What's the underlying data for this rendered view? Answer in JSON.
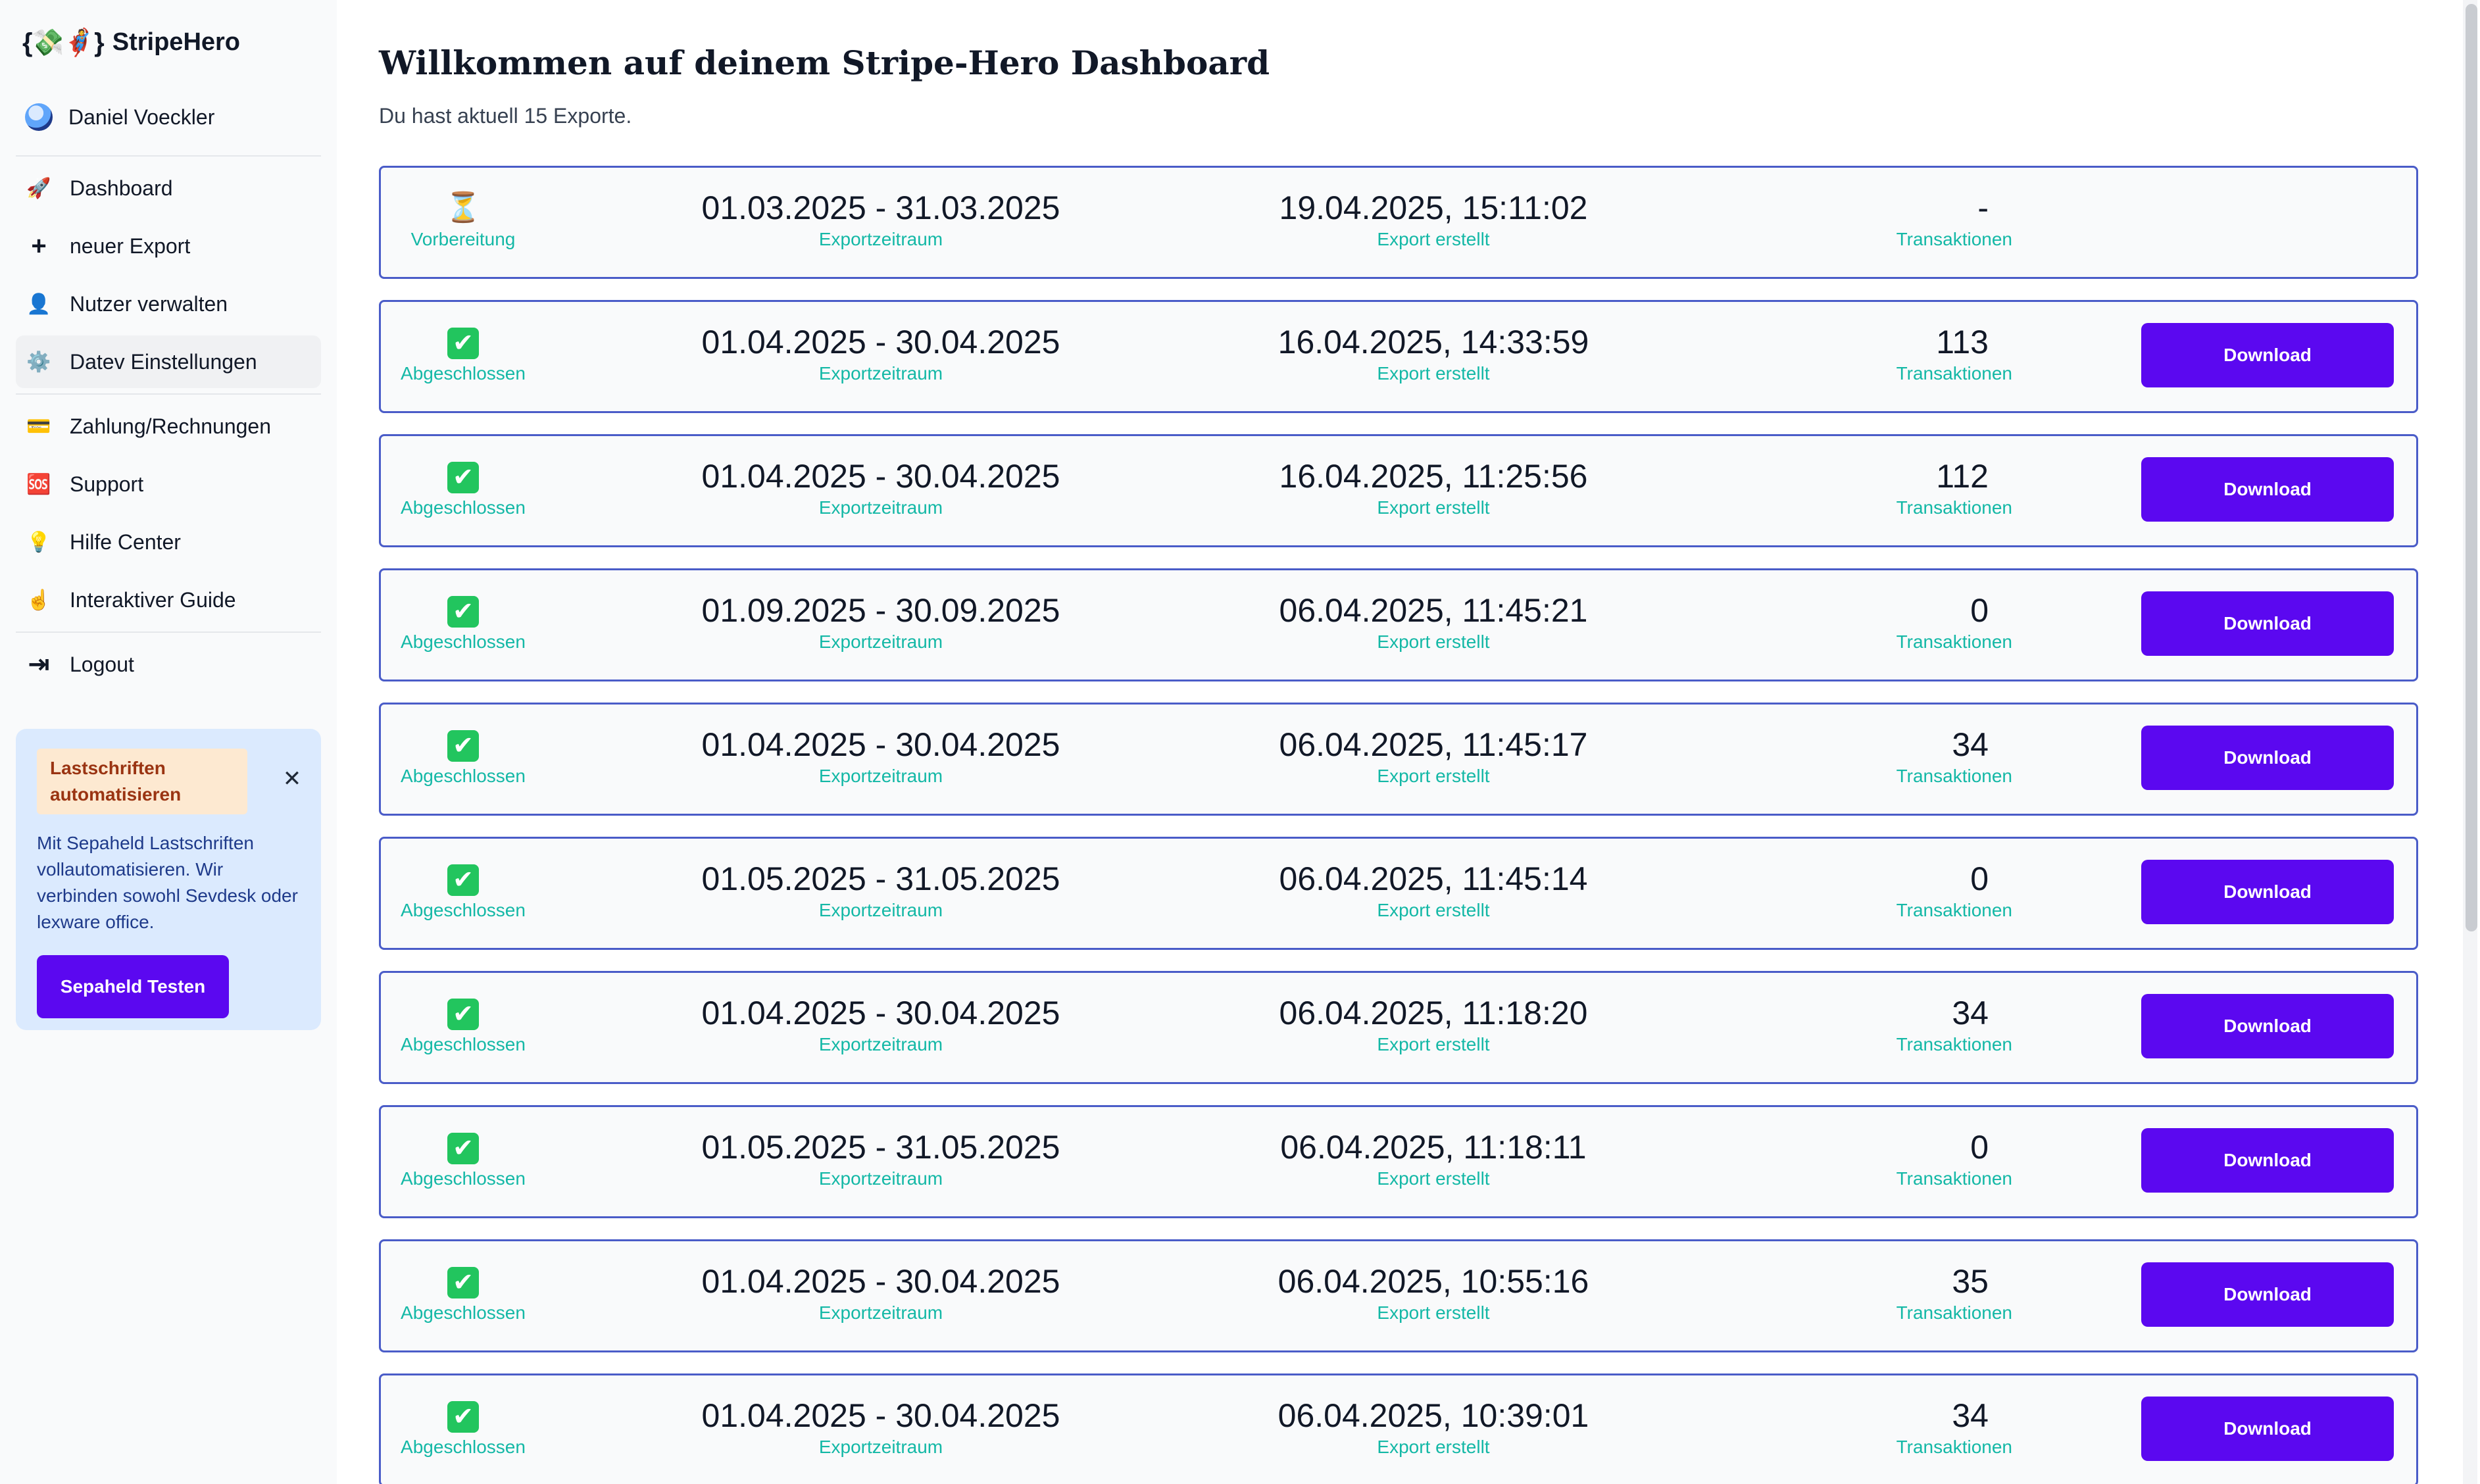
{
  "app": {
    "logo_glyph": "{💸🦸}",
    "name": "StripeHero"
  },
  "user": {
    "name": "Daniel Voeckler"
  },
  "nav": {
    "items": [
      {
        "label": "Dashboard",
        "icon": "🚀",
        "icon_name": "rocket-icon"
      },
      {
        "label": "neuer Export",
        "icon": "+",
        "icon_name": "plus-icon"
      },
      {
        "label": "Nutzer verwalten",
        "icon": "👤",
        "icon_name": "user-icon"
      },
      {
        "label": "Datev Einstellungen",
        "icon": "⚙️",
        "icon_name": "gear-icon"
      }
    ],
    "items2": [
      {
        "label": "Zahlung/Rechnungen",
        "icon": "💳",
        "icon_name": "credit-card-icon"
      },
      {
        "label": "Support",
        "icon": "🆘",
        "icon_name": "sos-icon"
      },
      {
        "label": "Hilfe Center",
        "icon": "💡",
        "icon_name": "lightbulb-icon"
      },
      {
        "label": "Interaktiver Guide",
        "icon": "☝️",
        "icon_name": "pointing-hand-icon"
      }
    ],
    "logout": {
      "label": "Logout",
      "icon": "⇥",
      "icon_name": "logout-icon"
    }
  },
  "promo": {
    "badge": "Lastschriften automatisieren",
    "text": "Mit Sepaheld Lastschriften vollautomatisieren. Wir verbinden sowohl Sevdesk oder lexware office.",
    "button": "Sepaheld Testen",
    "close": "✕"
  },
  "main": {
    "title": "Willkommen auf deinem Stripe-Hero Dashboard",
    "subtitle": "Du hast aktuell 15 Exporte."
  },
  "labels": {
    "period": "Exportzeitraum",
    "created": "Export erstellt",
    "count": "Transaktionen",
    "download": "Download"
  },
  "exports": [
    {
      "status": "Vorbereitung",
      "status_icon": "⏳",
      "period": "01.03.2025 - 31.03.2025",
      "created": "19.04.2025, 15:11:02",
      "count": "-",
      "downloadable": false
    },
    {
      "status": "Abgeschlossen",
      "status_icon": "✔",
      "period": "01.04.2025 - 30.04.2025",
      "created": "16.04.2025, 14:33:59",
      "count": "113",
      "downloadable": true
    },
    {
      "status": "Abgeschlossen",
      "status_icon": "✔",
      "period": "01.04.2025 - 30.04.2025",
      "created": "16.04.2025, 11:25:56",
      "count": "112",
      "downloadable": true
    },
    {
      "status": "Abgeschlossen",
      "status_icon": "✔",
      "period": "01.09.2025 - 30.09.2025",
      "created": "06.04.2025, 11:45:21",
      "count": "0",
      "downloadable": true
    },
    {
      "status": "Abgeschlossen",
      "status_icon": "✔",
      "period": "01.04.2025 - 30.04.2025",
      "created": "06.04.2025, 11:45:17",
      "count": "34",
      "downloadable": true
    },
    {
      "status": "Abgeschlossen",
      "status_icon": "✔",
      "period": "01.05.2025 - 31.05.2025",
      "created": "06.04.2025, 11:45:14",
      "count": "0",
      "downloadable": true
    },
    {
      "status": "Abgeschlossen",
      "status_icon": "✔",
      "period": "01.04.2025 - 30.04.2025",
      "created": "06.04.2025, 11:18:20",
      "count": "34",
      "downloadable": true
    },
    {
      "status": "Abgeschlossen",
      "status_icon": "✔",
      "period": "01.05.2025 - 31.05.2025",
      "created": "06.04.2025, 11:18:11",
      "count": "0",
      "downloadable": true
    },
    {
      "status": "Abgeschlossen",
      "status_icon": "✔",
      "period": "01.04.2025 - 30.04.2025",
      "created": "06.04.2025, 10:55:16",
      "count": "35",
      "downloadable": true
    },
    {
      "status": "Abgeschlossen",
      "status_icon": "✔",
      "period": "01.04.2025 - 30.04.2025",
      "created": "06.04.2025, 10:39:01",
      "count": "34",
      "downloadable": true
    }
  ],
  "colors": {
    "accent": "#5b08f0",
    "row_border": "#4a5cc8",
    "label_teal": "#14b8a6",
    "promo_bg": "#dbeafe"
  }
}
